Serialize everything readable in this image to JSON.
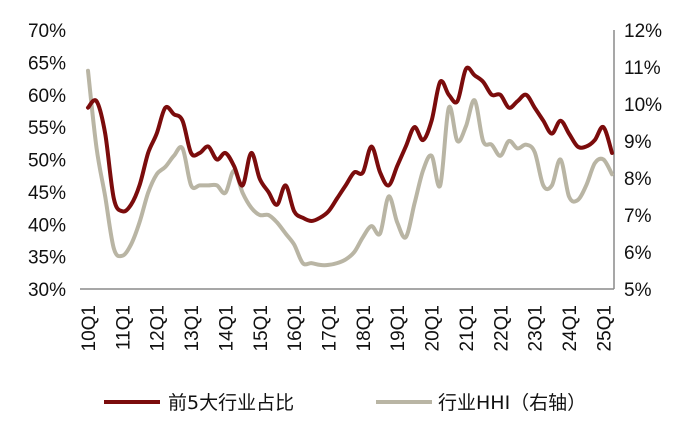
{
  "chart_data": {
    "type": "line",
    "title": "",
    "x": [
      "10Q1",
      "10Q2",
      "10Q3",
      "10Q4",
      "11Q1",
      "11Q2",
      "11Q3",
      "11Q4",
      "12Q1",
      "12Q2",
      "12Q3",
      "12Q4",
      "13Q1",
      "13Q2",
      "13Q3",
      "13Q4",
      "14Q1",
      "14Q2",
      "14Q3",
      "14Q4",
      "15Q1",
      "15Q2",
      "15Q3",
      "15Q4",
      "16Q1",
      "16Q2",
      "16Q3",
      "16Q4",
      "17Q1",
      "17Q2",
      "17Q3",
      "17Q4",
      "18Q1",
      "18Q2",
      "18Q3",
      "18Q4",
      "19Q1",
      "19Q2",
      "19Q3",
      "19Q4",
      "20Q1",
      "20Q2",
      "20Q3",
      "20Q4",
      "21Q1",
      "21Q2",
      "21Q3",
      "21Q4",
      "22Q1",
      "22Q2",
      "22Q3",
      "22Q4",
      "23Q1",
      "23Q2",
      "23Q3",
      "23Q4",
      "24Q1",
      "24Q2",
      "24Q3",
      "24Q4",
      "25Q1",
      "25Q2"
    ],
    "x_tick_labels": [
      "10Q1",
      "11Q1",
      "12Q1",
      "13Q1",
      "14Q1",
      "15Q1",
      "16Q1",
      "17Q1",
      "18Q1",
      "19Q1",
      "20Q1",
      "21Q1",
      "22Q1",
      "23Q1",
      "24Q1",
      "25Q1"
    ],
    "y_left": {
      "ticks": [
        "30%",
        "35%",
        "40%",
        "45%",
        "50%",
        "55%",
        "60%",
        "65%",
        "70%"
      ],
      "range": [
        30,
        70
      ]
    },
    "y_right": {
      "ticks": [
        "5%",
        "6%",
        "7%",
        "8%",
        "9%",
        "10%",
        "11%",
        "12%"
      ],
      "range": [
        5,
        12
      ]
    },
    "grid": false,
    "legend_position": "bottom",
    "series": [
      {
        "name": "前5大行业占比",
        "axis": "left",
        "color": "#7b0c0c",
        "values": [
          58,
          59,
          54,
          44,
          42,
          43,
          46,
          51,
          54,
          58,
          57,
          56,
          51,
          51,
          52,
          50,
          51,
          49,
          46,
          51,
          47,
          45,
          43,
          46,
          42,
          41,
          40.5,
          41,
          42,
          44,
          46,
          48,
          48,
          52,
          48,
          46,
          49,
          52,
          55,
          53,
          56,
          62,
          60,
          59,
          64,
          63,
          62,
          60,
          60,
          58,
          59,
          60,
          58,
          56,
          54,
          56,
          54,
          52,
          52,
          53,
          55,
          51
        ]
      },
      {
        "name": "行业HHI（右轴）",
        "axis": "right",
        "color": "#b9b5a4",
        "values": [
          10.9,
          8.8,
          7.5,
          6.1,
          5.9,
          6.2,
          6.8,
          7.6,
          8.1,
          8.3,
          8.6,
          8.8,
          7.8,
          7.8,
          7.8,
          7.8,
          7.6,
          8.2,
          7.6,
          7.2,
          7.0,
          7.0,
          6.8,
          6.5,
          6.2,
          5.7,
          5.7,
          5.65,
          5.65,
          5.7,
          5.8,
          6.0,
          6.4,
          6.7,
          6.5,
          7.5,
          6.8,
          6.4,
          7.3,
          8.2,
          8.6,
          7.8,
          9.9,
          9.0,
          9.4,
          10.1,
          9.0,
          8.9,
          8.6,
          9.0,
          8.8,
          8.9,
          8.7,
          7.8,
          7.8,
          8.5,
          7.5,
          7.4,
          7.8,
          8.4,
          8.5,
          8.1
        ]
      }
    ]
  }
}
